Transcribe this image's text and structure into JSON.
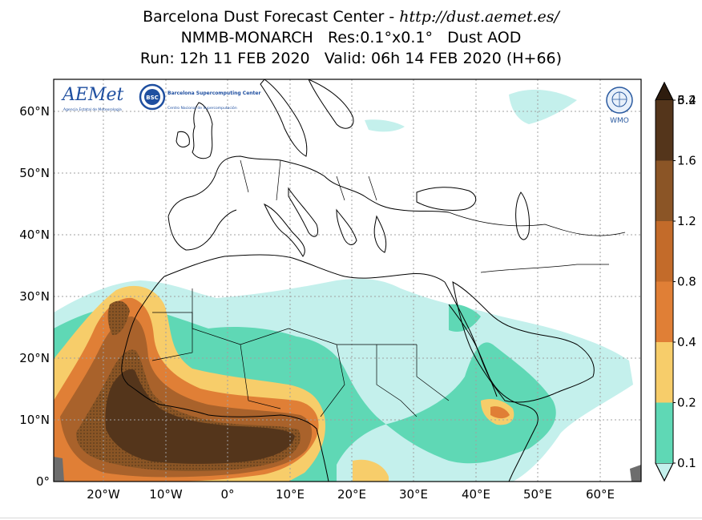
{
  "title": {
    "prefix": "Barcelona Dust Forecast Center - ",
    "url": "http://dust.aemet.es/",
    "line2": "NMMB-MONARCH   Res:0.1°x0.1°   Dust AOD",
    "line3": "Run: 12h 11 FEB 2020   Valid: 06h 14 FEB 2020 (H+66)"
  },
  "logos": {
    "aemet": "AEMet",
    "aemet_sub": "Agencia Estatal de Meteorología",
    "bsc": "BSC",
    "bsc_name": "Barcelona Supercomputing Center",
    "bsc_sub": "Centro Nacional de Supercomputación",
    "wmo": "WMO"
  },
  "axes": {
    "lat_labels": [
      "60°N",
      "50°N",
      "40°N",
      "30°N",
      "20°N",
      "10°N",
      "0°"
    ],
    "lon_labels": [
      "20°W",
      "10°W",
      "0°",
      "10°E",
      "20°E",
      "30°E",
      "40°E",
      "50°E",
      "60°E"
    ]
  },
  "colorbar": {
    "levels": [
      "0.1",
      "0.2",
      "0.4",
      "0.8",
      "1.2",
      "1.6",
      "3.2",
      "6.4"
    ],
    "colors": [
      "#c4f0ec",
      "#5fd8b5",
      "#f7cd6a",
      "#e07f36",
      "#c36b2a",
      "#8b5526",
      "#54351b",
      "#2e1c0e"
    ]
  },
  "map_colors": {
    "land_line": "#000000",
    "grid": "#a0a0a0",
    "ocean_mask": "#6d6d6d"
  }
}
